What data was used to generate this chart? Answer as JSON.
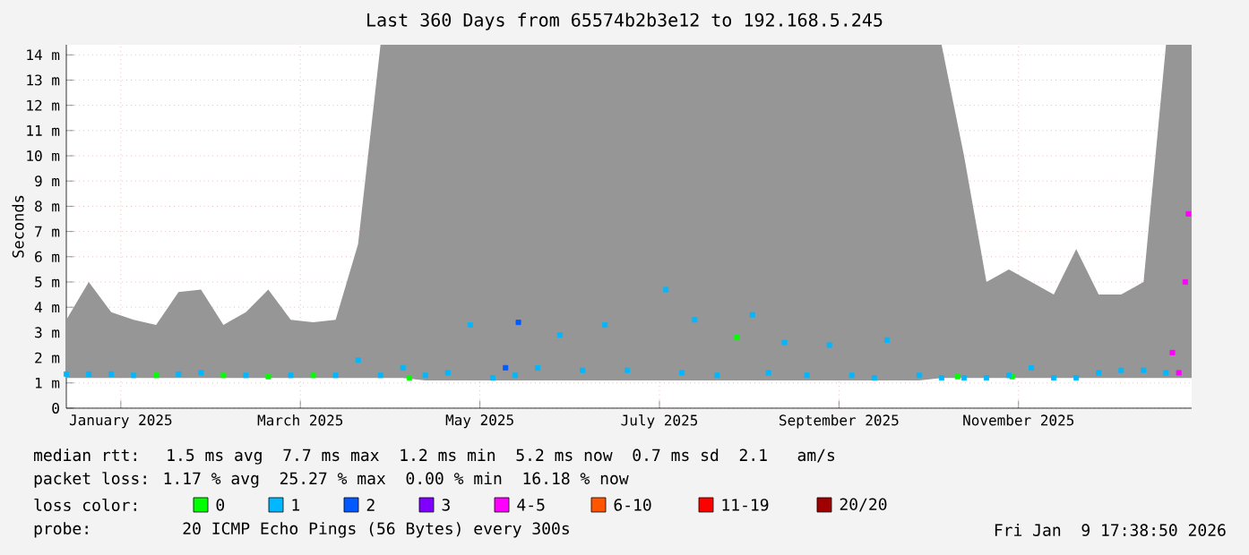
{
  "chart_data": {
    "type": "scatter",
    "title": "Last 360 Days from 65574b2b3e12 to 192.168.5.245",
    "ylabel": "Seconds",
    "legend_title": "loss color:",
    "legend": "bottom",
    "marker": "square",
    "grid": true,
    "xlim": [
      "2025-01-13",
      "2025-12-30"
    ],
    "xticks": [
      {
        "value": "2025-01-30",
        "label": "January 2025"
      },
      {
        "value": "2025-03-27",
        "label": "March 2025"
      },
      {
        "value": "2025-05-22",
        "label": "May 2025"
      },
      {
        "value": "2025-07-17",
        "label": "July 2025"
      },
      {
        "value": "2025-09-11",
        "label": "September 2025"
      },
      {
        "value": "2025-11-06",
        "label": "November 2025"
      }
    ],
    "ylim": [
      0,
      14.4
    ],
    "yticks": [
      0,
      {
        "value": 1,
        "label": "1 m"
      },
      {
        "value": 2,
        "label": "2 m"
      },
      {
        "value": 3,
        "label": "3 m"
      },
      {
        "value": 4,
        "label": "4 m"
      },
      {
        "value": 5,
        "label": "5 m"
      },
      {
        "value": 6,
        "label": "6 m"
      },
      {
        "value": 7,
        "label": "7 m"
      },
      {
        "value": 8,
        "label": "8 m"
      },
      {
        "value": 9,
        "label": "9 m"
      },
      {
        "value": 10,
        "label": "10 m"
      },
      {
        "value": 11,
        "label": "11 m"
      },
      {
        "value": 12,
        "label": "12 m"
      },
      {
        "value": 13,
        "label": "13 m"
      },
      {
        "value": 14,
        "label": "14 m"
      }
    ],
    "series": [
      {
        "name": "0",
        "color": "#00ff00",
        "x": [
          "2025-02-10",
          "2025-03-03",
          "2025-03-17",
          "2025-03-31",
          "2025-04-30",
          "2025-08-10",
          "2025-10-18",
          "2025-11-04"
        ],
        "values": [
          1.3,
          1.3,
          1.25,
          1.3,
          1.2,
          2.8,
          1.25,
          1.25
        ]
      },
      {
        "name": "1",
        "color": "#00b8ff",
        "x": [
          "2025-01-13",
          "2025-01-20",
          "2025-01-27",
          "2025-02-03",
          "2025-02-10",
          "2025-02-17",
          "2025-02-24",
          "2025-03-03",
          "2025-03-10",
          "2025-03-17",
          "2025-03-24",
          "2025-03-31",
          "2025-04-07",
          "2025-04-14",
          "2025-04-21",
          "2025-04-28",
          "2025-05-05",
          "2025-05-12",
          "2025-05-19",
          "2025-05-26",
          "2025-06-02",
          "2025-06-09",
          "2025-06-16",
          "2025-06-23",
          "2025-06-30",
          "2025-07-07",
          "2025-07-19",
          "2025-07-24",
          "2025-07-28",
          "2025-08-04",
          "2025-08-15",
          "2025-08-20",
          "2025-08-25",
          "2025-09-01",
          "2025-09-08",
          "2025-09-15",
          "2025-09-22",
          "2025-09-26",
          "2025-10-06",
          "2025-10-13",
          "2025-10-20",
          "2025-10-27",
          "2025-11-03",
          "2025-11-10",
          "2025-11-17",
          "2025-11-24",
          "2025-12-01",
          "2025-12-08",
          "2025-12-15",
          "2025-12-22",
          "2025-12-30"
        ],
        "values": [
          1.35,
          1.35,
          1.35,
          1.3,
          null,
          1.35,
          1.4,
          null,
          1.3,
          null,
          1.3,
          null,
          1.3,
          1.9,
          1.3,
          1.6,
          1.3,
          1.4,
          3.3,
          1.2,
          1.3,
          1.6,
          2.9,
          1.5,
          3.3,
          1.5,
          4.7,
          1.4,
          3.5,
          1.3,
          3.7,
          1.4,
          2.6,
          1.3,
          2.5,
          1.3,
          1.2,
          2.7,
          1.3,
          1.2,
          1.2,
          1.2,
          1.3,
          1.6,
          1.2,
          1.2,
          1.4,
          1.5,
          1.5,
          1.4,
          null
        ],
        "lower": [
          1.2,
          1.2,
          1.2,
          1.2,
          1.2,
          1.2,
          1.2,
          1.2,
          1.2,
          1.2,
          1.2,
          1.2,
          1.2,
          1.2,
          1.2,
          1.2,
          1.1,
          1.1,
          1.1,
          1.1,
          1.1,
          1.1,
          1.1,
          1.1,
          1.1,
          1.1,
          1.1,
          1.1,
          1.1,
          1.1,
          1.1,
          1.1,
          1.1,
          1.1,
          1.1,
          1.1,
          1.1,
          1.1,
          1.1,
          1.2,
          1.2,
          1.2,
          1.2,
          1.2,
          1.2,
          1.2,
          1.2,
          1.2,
          1.2,
          1.2,
          1.2
        ],
        "upper": [
          3.5,
          5.0,
          3.8,
          3.5,
          3.3,
          4.6,
          4.7,
          3.3,
          3.8,
          4.7,
          3.5,
          3.4,
          3.5,
          6.5,
          14.4,
          14.4,
          14.4,
          14.4,
          14.4,
          14.4,
          14.4,
          14.4,
          14.4,
          14.4,
          14.4,
          14.4,
          14.4,
          14.4,
          14.4,
          14.4,
          14.4,
          14.4,
          14.4,
          14.4,
          14.4,
          14.4,
          14.4,
          14.4,
          14.4,
          14.4,
          10,
          5.0,
          5.5,
          5.0,
          4.5,
          6.3,
          4.5,
          4.5,
          5.0,
          14.4,
          14.4
        ]
      },
      {
        "name": "2",
        "color": "#0059ff",
        "x": [
          "2025-05-30",
          "2025-06-03"
        ],
        "values": [
          1.6,
          3.4
        ]
      },
      {
        "name": "3",
        "color": "#8000ff"
      },
      {
        "name": "4-5",
        "color": "#ff00ff",
        "x": [
          "2025-12-24",
          "2025-12-26",
          "2025-12-28",
          "2025-12-29"
        ],
        "values": [
          2.2,
          1.4,
          5.0,
          7.7
        ]
      },
      {
        "name": "6-10",
        "color": "#ff5500"
      },
      {
        "name": "11-19",
        "color": "#ff0000"
      },
      {
        "name": "20/20",
        "color": "#a10000"
      }
    ],
    "annotations": [
      "median rtt:  1.5 ms avg  7.7 ms max  1.2 ms min  5.2 ms now  0.7 ms sd  2.1   am/s",
      "packet loss: 1.17 % avg  25.27 % max  0.00 % min  16.18 % now",
      "probe:       20 ICMP Echo Pings (56 Bytes) every 300s",
      "Fri Jan  9 17:38:50 2026"
    ]
  }
}
